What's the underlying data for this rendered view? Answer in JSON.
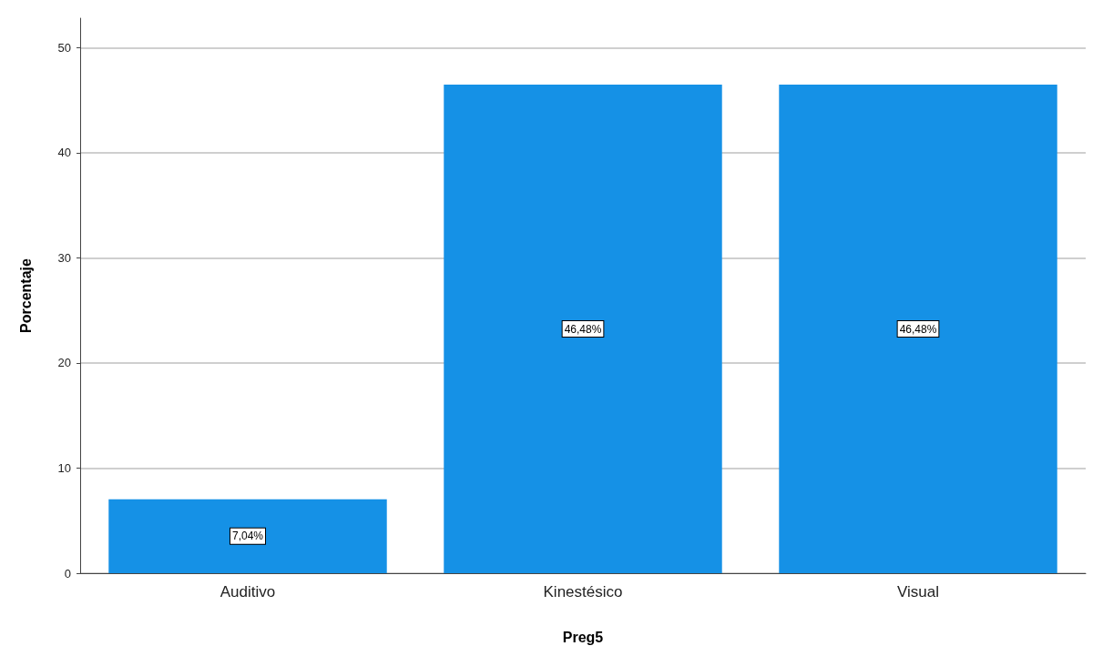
{
  "chart_data": {
    "type": "bar",
    "xlabel": "Preg5",
    "ylabel": "Porcentaje",
    "categories": [
      "Auditivo",
      "Kinestésico",
      "Visual"
    ],
    "values": [
      7.04,
      46.48,
      46.48
    ],
    "value_labels": [
      "7,04%",
      "46,48%",
      "46,48%"
    ],
    "color": "#1591e6",
    "ylim": [
      0,
      52.8
    ],
    "yticks": [
      0,
      10,
      20,
      30,
      40,
      50
    ],
    "grid": "y"
  }
}
